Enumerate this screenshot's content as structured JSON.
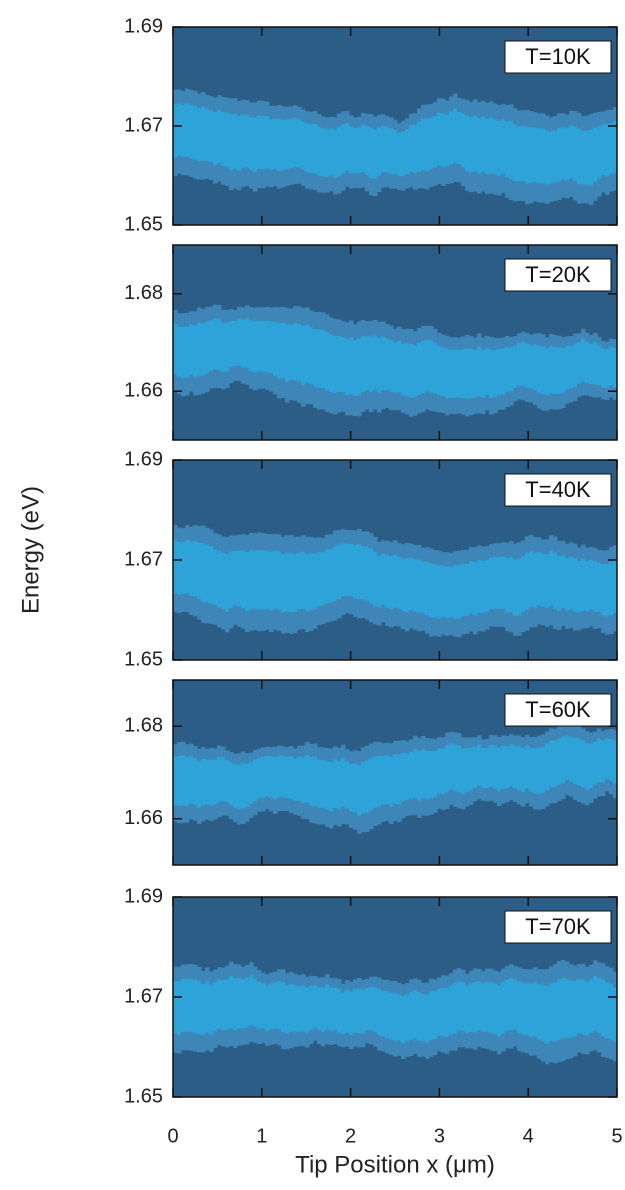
{
  "y_label": "Energy (eV)",
  "x_label": "Tip Position x (μm)",
  "chart_data": [
    {
      "type": "heatmap",
      "label": "T=10K",
      "ylim": [
        1.65,
        1.69
      ],
      "yticks": [
        1.65,
        1.67,
        1.69
      ],
      "xlim": [
        0,
        5
      ],
      "xticks": [
        0,
        1,
        2,
        3,
        4,
        5
      ]
    },
    {
      "type": "heatmap",
      "label": "T=20K",
      "ylim": [
        1.65,
        1.69
      ],
      "yticks": [
        1.66,
        1.68
      ],
      "xlim": [
        0,
        5
      ],
      "xticks": [
        0,
        1,
        2,
        3,
        4,
        5
      ]
    },
    {
      "type": "heatmap",
      "label": "T=40K",
      "ylim": [
        1.65,
        1.69
      ],
      "yticks": [
        1.65,
        1.67,
        1.69
      ],
      "xlim": [
        0,
        5
      ],
      "xticks": [
        0,
        1,
        2,
        3,
        4,
        5
      ]
    },
    {
      "type": "heatmap",
      "label": "T=60K",
      "ylim": [
        1.65,
        1.69
      ],
      "yticks": [
        1.66,
        1.68
      ],
      "xlim": [
        0,
        5
      ],
      "xticks": [
        0,
        1,
        2,
        3,
        4,
        5
      ]
    },
    {
      "type": "heatmap",
      "label": "T=70K",
      "ylim": [
        1.65,
        1.69
      ],
      "yticks": [
        1.65,
        1.67,
        1.69
      ],
      "xlim": [
        0,
        5
      ],
      "xticks": [
        0,
        1,
        2,
        3,
        4,
        5
      ]
    }
  ]
}
